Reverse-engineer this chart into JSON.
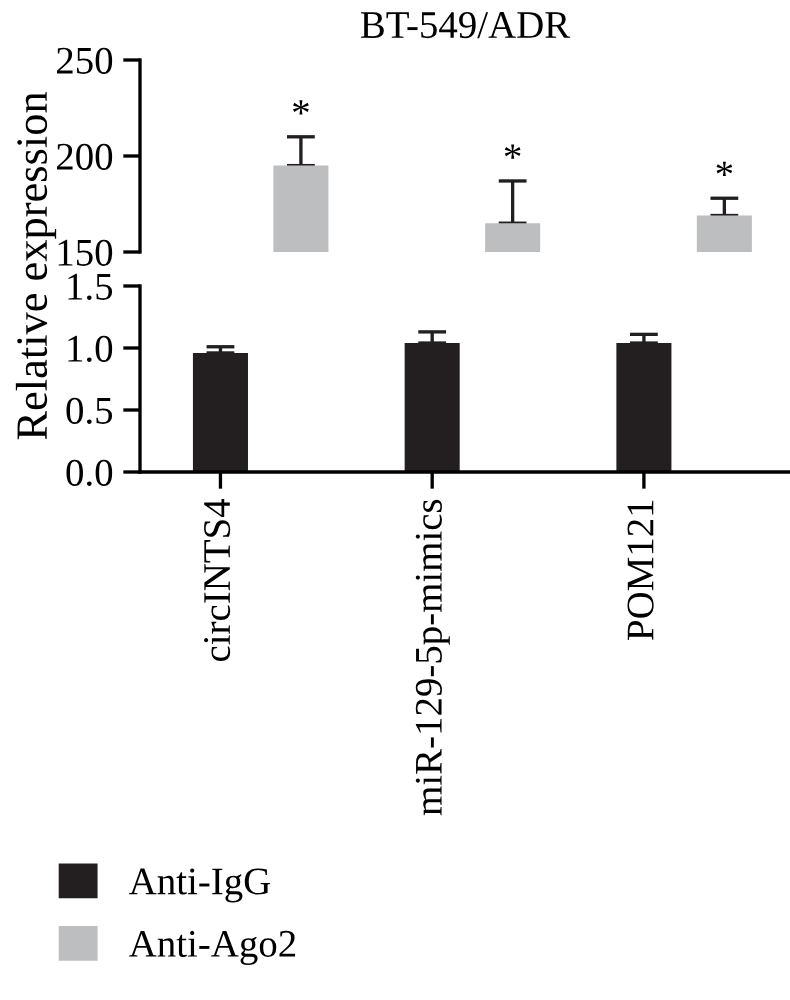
{
  "chart_data": [
    {
      "type": "bar",
      "title": "BT-549/ADR",
      "ylabel": "Relative expression",
      "categories": [
        null,
        null,
        null
      ],
      "ylim": [
        150,
        250
      ],
      "yticks": [
        150,
        200,
        250
      ],
      "tick_labels": "y",
      "grid": false,
      "series": [
        {
          "name": "Anti-Ago2",
          "color": "#bcbec0",
          "values": [
            195,
            165,
            169
          ],
          "errors": [
            [
              195,
              210
            ],
            [
              165,
              187
            ],
            [
              169,
              178
            ]
          ]
        }
      ],
      "annotations": [
        "*",
        "*",
        "*"
      ]
    },
    {
      "type": "bar",
      "categories": [
        "circINTS4",
        "miR-129-5p-mimics",
        "POM121"
      ],
      "ylim": [
        0,
        1.5
      ],
      "yticks": [
        {
          "value": 0,
          "label": "0.0"
        },
        {
          "value": 0.5,
          "label": "0.5"
        },
        {
          "value": 1.0,
          "label": "1.0"
        },
        {
          "value": 1.5,
          "label": "1.5"
        }
      ],
      "legend": "bottom left",
      "grid": false,
      "series": [
        {
          "name": "Anti-IgG",
          "color": "#231f20",
          "values": [
            0.96,
            1.04,
            1.04
          ],
          "errors": [
            [
              0.96,
              1.01
            ],
            [
              1.04,
              1.13
            ],
            [
              1.04,
              1.11
            ]
          ]
        }
      ]
    }
  ]
}
